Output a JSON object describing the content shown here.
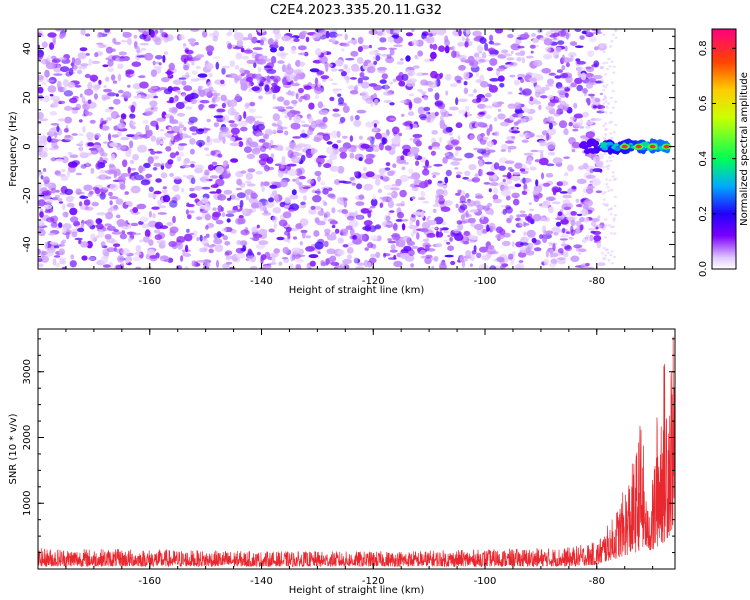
{
  "title": "C2E4.2023.335.20.11.G32",
  "colors": {
    "snr_line": "#e8282e",
    "axis": "#000000"
  },
  "chart_data": [
    {
      "type": "heatmap",
      "xlabel": "Height of straight line (km)",
      "ylabel": "Frequency (Hz)",
      "xlim": [
        -180,
        -66
      ],
      "ylim": [
        -50,
        48
      ],
      "x_ticks": [
        -160,
        -140,
        -120,
        -100,
        -80
      ],
      "x_tick_labels": [
        "-160",
        "-140",
        "-120",
        "-100",
        "-80"
      ],
      "y_ticks": [
        -40,
        -20,
        0,
        20,
        40
      ],
      "y_tick_labels": [
        "-40",
        "-20",
        "0",
        "20",
        "40"
      ],
      "noise_region_x": [
        -180,
        -79
      ],
      "signal": {
        "frequency": 0,
        "x_start": -83,
        "x_end": -67,
        "peaks_x": [
          -75,
          -72.5,
          -70,
          -67.5
        ]
      },
      "colorbar": {
        "label": "Normalized spectral amplitude",
        "range": [
          0,
          0.87
        ],
        "ticks": [
          0.0,
          0.2,
          0.4,
          0.6,
          0.8
        ],
        "tick_labels": [
          "0.0",
          "0.2",
          "0.4",
          "0.6",
          "0.8"
        ],
        "stops": [
          {
            "value": 0.0,
            "color": "#ffffff"
          },
          {
            "value": 0.04,
            "color": "#e2c8ff"
          },
          {
            "value": 0.12,
            "color": "#7a00ff"
          },
          {
            "value": 0.2,
            "color": "#2200ff"
          },
          {
            "value": 0.3,
            "color": "#00aaff"
          },
          {
            "value": 0.4,
            "color": "#00ff55"
          },
          {
            "value": 0.55,
            "color": "#ccff00"
          },
          {
            "value": 0.65,
            "color": "#ffcc00"
          },
          {
            "value": 0.75,
            "color": "#ff4400"
          },
          {
            "value": 0.87,
            "color": "#ff0080"
          }
        ]
      }
    },
    {
      "type": "line",
      "xlabel": "Height of straight line (km)",
      "ylabel": "SNR (10 * v/v)",
      "xlim": [
        -180,
        -66
      ],
      "ylim": [
        0,
        3650
      ],
      "x_ticks": [
        -160,
        -140,
        -120,
        -100,
        -80
      ],
      "x_tick_labels": [
        "-160",
        "-140",
        "-120",
        "-100",
        "-80"
      ],
      "y_ticks": [
        1000,
        2000,
        3000
      ],
      "y_tick_labels": [
        "1000",
        "2000",
        "3000"
      ],
      "envelope": [
        {
          "x": -180,
          "min": 40,
          "max": 320
        },
        {
          "x": -160,
          "min": 40,
          "max": 300
        },
        {
          "x": -140,
          "min": 40,
          "max": 270
        },
        {
          "x": -120,
          "min": 40,
          "max": 270
        },
        {
          "x": -100,
          "min": 40,
          "max": 300
        },
        {
          "x": -85,
          "min": 40,
          "max": 330
        },
        {
          "x": -80,
          "min": 60,
          "max": 420
        },
        {
          "x": -77,
          "min": 150,
          "max": 800
        },
        {
          "x": -75,
          "min": 200,
          "max": 1250
        },
        {
          "x": -73,
          "min": 250,
          "max": 1800
        },
        {
          "x": -72,
          "min": 300,
          "max": 2450
        },
        {
          "x": -71,
          "min": 300,
          "max": 900
        },
        {
          "x": -70,
          "min": 250,
          "max": 1400
        },
        {
          "x": -69,
          "min": 350,
          "max": 2700
        },
        {
          "x": -68,
          "min": 400,
          "max": 3200
        },
        {
          "x": -67,
          "min": 500,
          "max": 3450
        },
        {
          "x": -66,
          "min": 700,
          "max": 3650
        }
      ]
    }
  ]
}
